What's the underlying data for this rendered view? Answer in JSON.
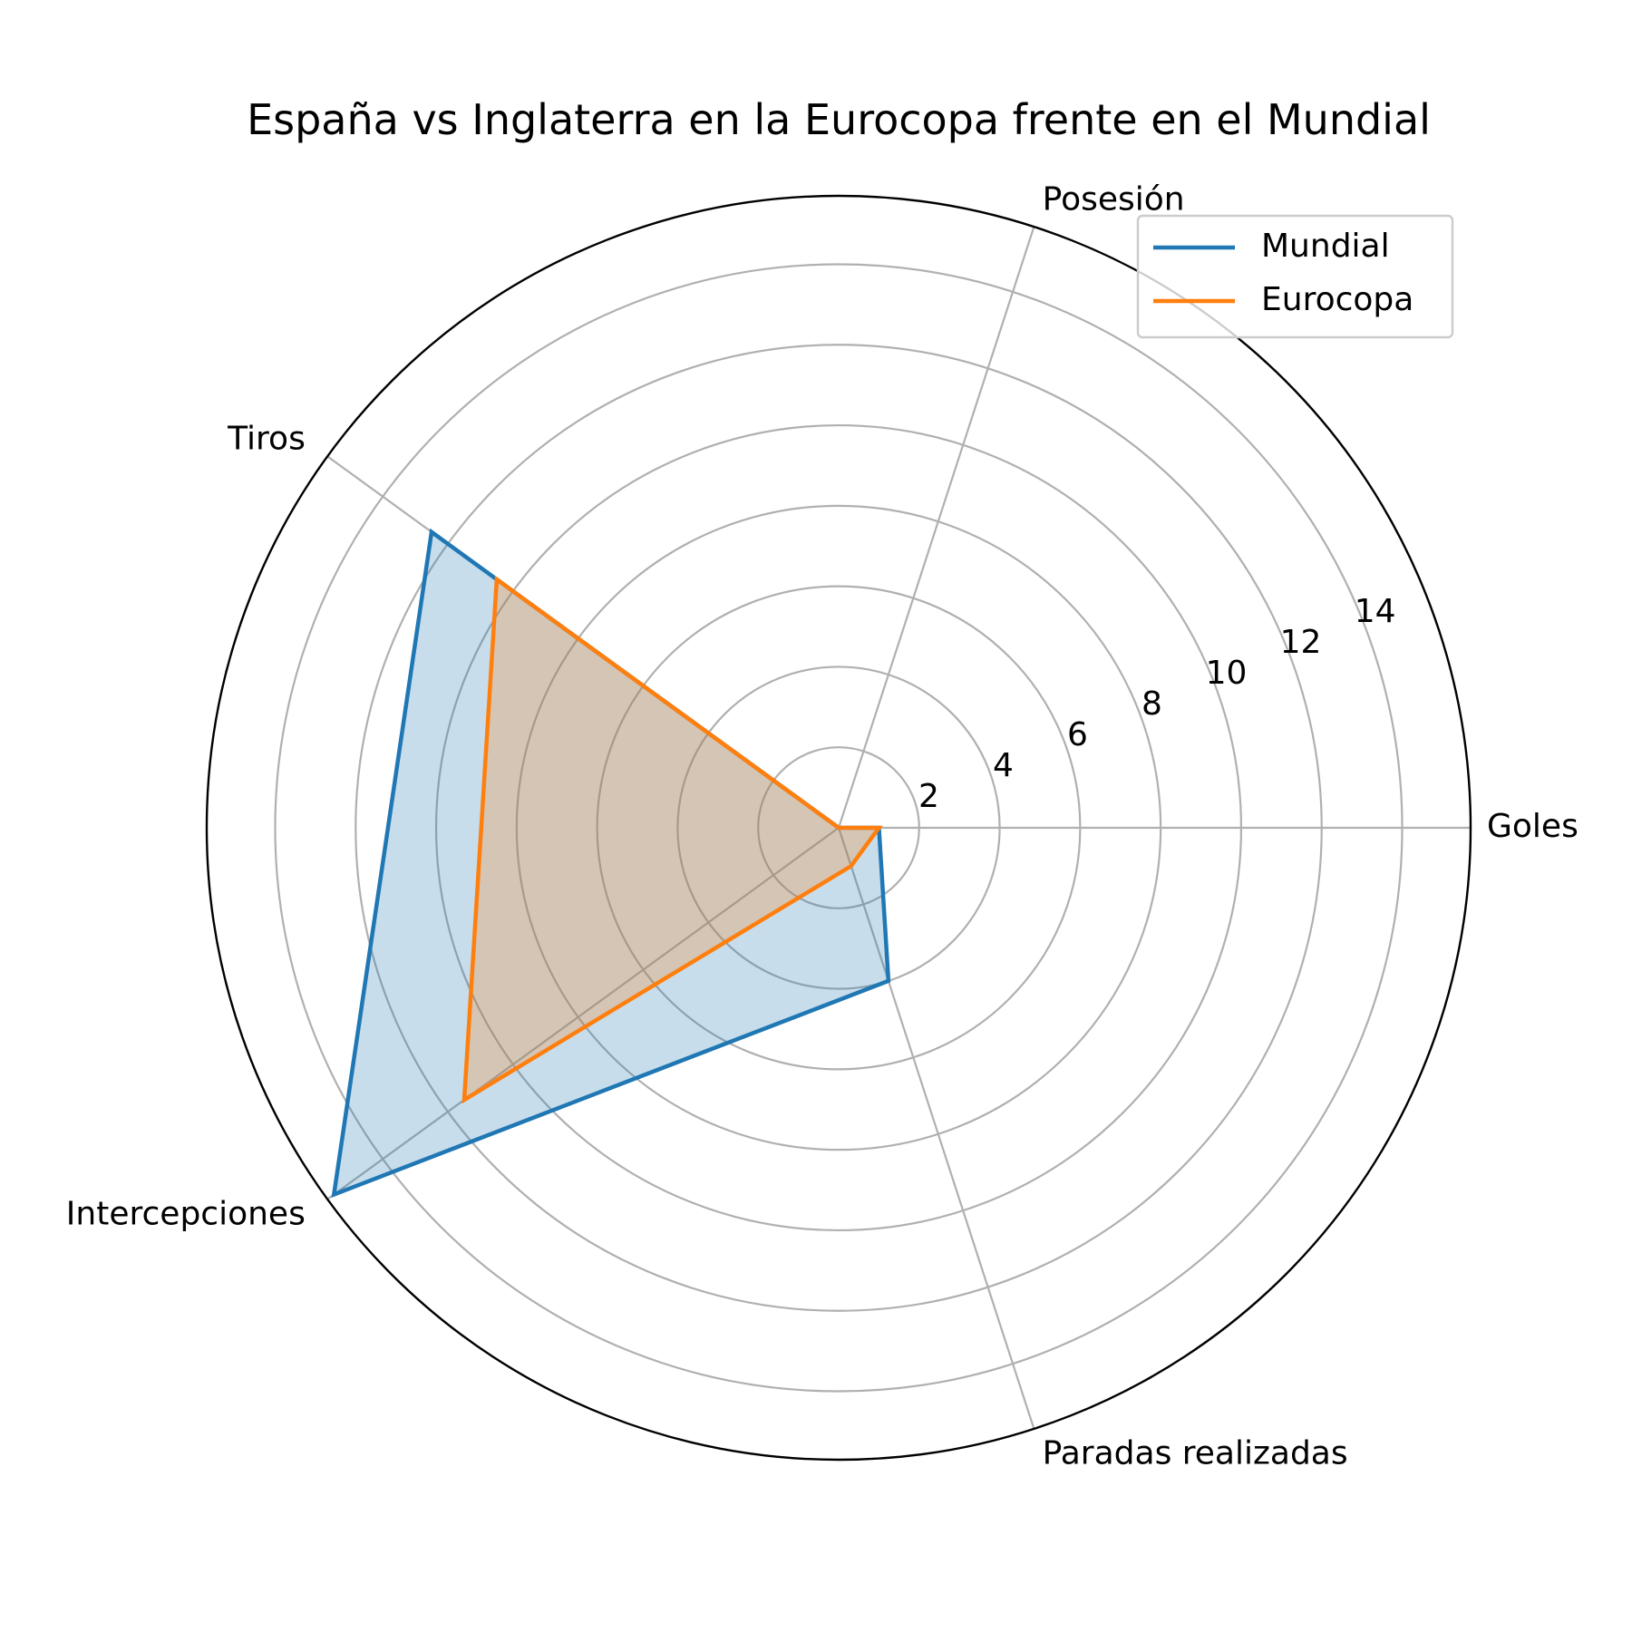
{
  "chart_data": {
    "type": "radar",
    "title": "España vs Inglaterra en la Eurocopa frente en el Mundial",
    "categories": [
      "Goles",
      "Posesión",
      "Tiros",
      "Intercepciones",
      "Paradas realizadas"
    ],
    "radial_ticks": [
      2,
      4,
      6,
      8,
      10,
      12,
      14
    ],
    "radial_tick_labels": [
      "2",
      "4",
      "6",
      "8",
      "10",
      "12",
      "14"
    ],
    "rlim": [
      0,
      15.7
    ],
    "grid": true,
    "legend": {
      "position": "top-right"
    },
    "series": [
      {
        "name": "Mundial",
        "values": [
          1,
          0,
          12.5,
          15.5,
          4
        ],
        "color": "#1f77b4",
        "fill_color": "#1f77b4",
        "fill_opacity": 0.25
      },
      {
        "name": "Eurocopa",
        "values": [
          1,
          0,
          10.5,
          11.5,
          1
        ],
        "color": "#ff7f0e",
        "fill_color": "#ff7f0e",
        "fill_opacity": 0.25
      }
    ]
  }
}
